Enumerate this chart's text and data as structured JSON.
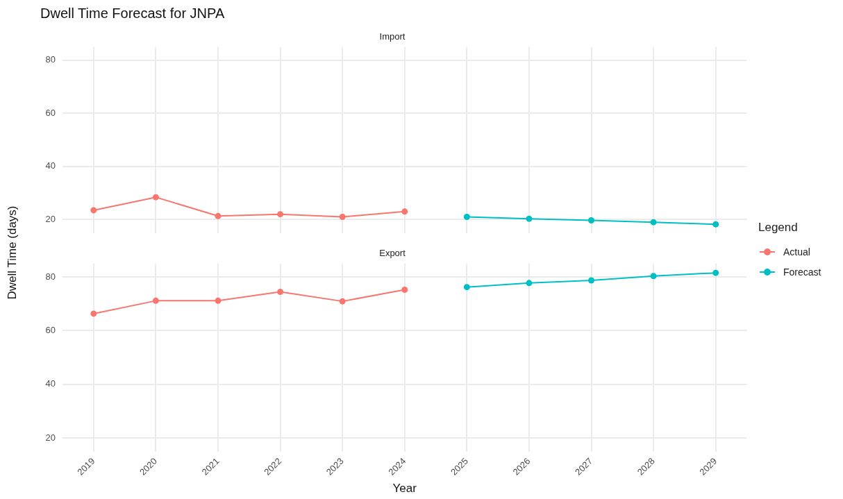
{
  "chart_data": [
    {
      "type": "line",
      "title": "Dwell Time Forecast for JNPA",
      "subtitle": "Import",
      "ylabel": "Dwell Time (days)",
      "legend_title": "Legend",
      "legend": "right",
      "marker": "circle",
      "grid": true,
      "tick_labels": "y",
      "categories": [
        "2019",
        "2020",
        "2021",
        "2022",
        "2023",
        "2024",
        "2025",
        "2026",
        "2027",
        "2028",
        "2029"
      ],
      "ylim": [
        14.8,
        85
      ],
      "yticks": [
        20,
        40,
        60,
        80
      ],
      "series": [
        {
          "name": "Actual",
          "color": "#f8766d",
          "values": [
            23.5,
            28.4,
            21.3,
            22,
            21,
            23,
            null,
            null,
            null,
            null,
            null
          ]
        },
        {
          "name": "Forecast",
          "color": "#00bfc4",
          "values": [
            null,
            null,
            null,
            null,
            null,
            null,
            21,
            20.3,
            19.7,
            19,
            18.2
          ]
        }
      ]
    },
    {
      "type": "line",
      "subtitle": "Export",
      "xlabel": "Year",
      "marker": "circle",
      "grid": true,
      "categories": [
        "2019",
        "2020",
        "2021",
        "2022",
        "2023",
        "2024",
        "2025",
        "2026",
        "2027",
        "2028",
        "2029"
      ],
      "ylim": [
        14.8,
        85
      ],
      "yticks": [
        20,
        40,
        60,
        80
      ],
      "series": [
        {
          "color": "#f8766d",
          "values": [
            66.3,
            71.1,
            71.1,
            74.4,
            70.9,
            75.2,
            null,
            null,
            null,
            null,
            null
          ]
        },
        {
          "color": "#00bfc4",
          "values": [
            null,
            null,
            null,
            null,
            null,
            null,
            76.2,
            77.7,
            78.7,
            80.3,
            81.5
          ]
        }
      ]
    }
  ]
}
